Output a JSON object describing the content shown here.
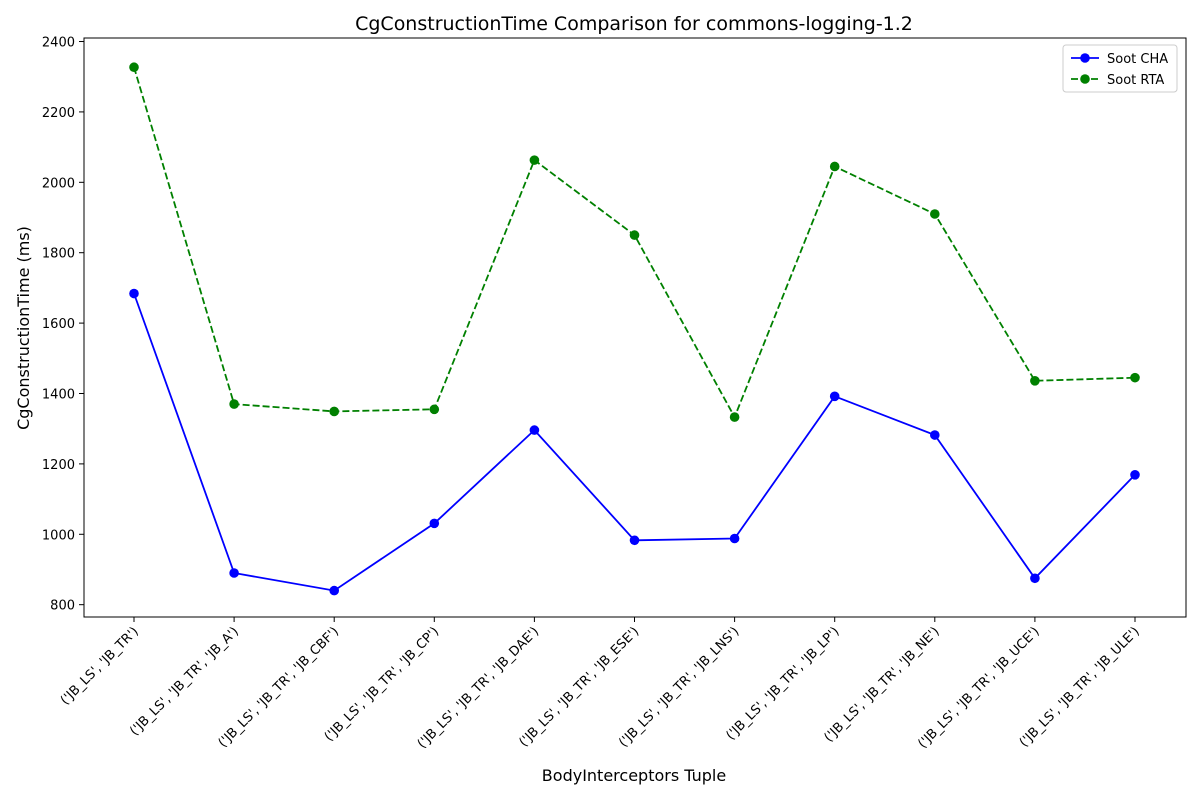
{
  "chart_data": {
    "type": "line",
    "title": "CgConstructionTime Comparison for commons-logging-1.2",
    "xlabel": "BodyInterceptors Tuple",
    "ylabel": "CgConstructionTime (ms)",
    "ylim": [
      765,
      2410
    ],
    "yticks": [
      800,
      1000,
      1200,
      1400,
      1600,
      1800,
      2000,
      2200,
      2400
    ],
    "grid": false,
    "legend_position": "top-right",
    "categories": [
      "('JB_LS', 'JB_TR')",
      "('JB_LS', 'JB_TR', 'JB_A')",
      "('JB_LS', 'JB_TR', 'JB_CBF')",
      "('JB_LS', 'JB_TR', 'JB_CP')",
      "('JB_LS', 'JB_TR', 'JB_DAE')",
      "('JB_LS', 'JB_TR', 'JB_ESE')",
      "('JB_LS', 'JB_TR', 'JB_LNS')",
      "('JB_LS', 'JB_TR', 'JB_LP')",
      "('JB_LS', 'JB_TR', 'JB_NE')",
      "('JB_LS', 'JB_TR', 'JB_UCE')",
      "('JB_LS', 'JB_TR', 'JB_ULE')"
    ],
    "series": [
      {
        "name": "Soot CHA",
        "color": "#0000ff",
        "line_style": "solid",
        "marker": "circle",
        "values": [
          1684,
          890,
          840,
          1031,
          1296,
          983,
          988,
          1392,
          1282,
          875,
          1169
        ]
      },
      {
        "name": "Soot RTA",
        "color": "#008000",
        "line_style": "dashed",
        "marker": "circle",
        "values": [
          2327,
          1370,
          1349,
          1355,
          2063,
          1850,
          1333,
          2045,
          1910,
          1436,
          1445
        ]
      }
    ]
  }
}
